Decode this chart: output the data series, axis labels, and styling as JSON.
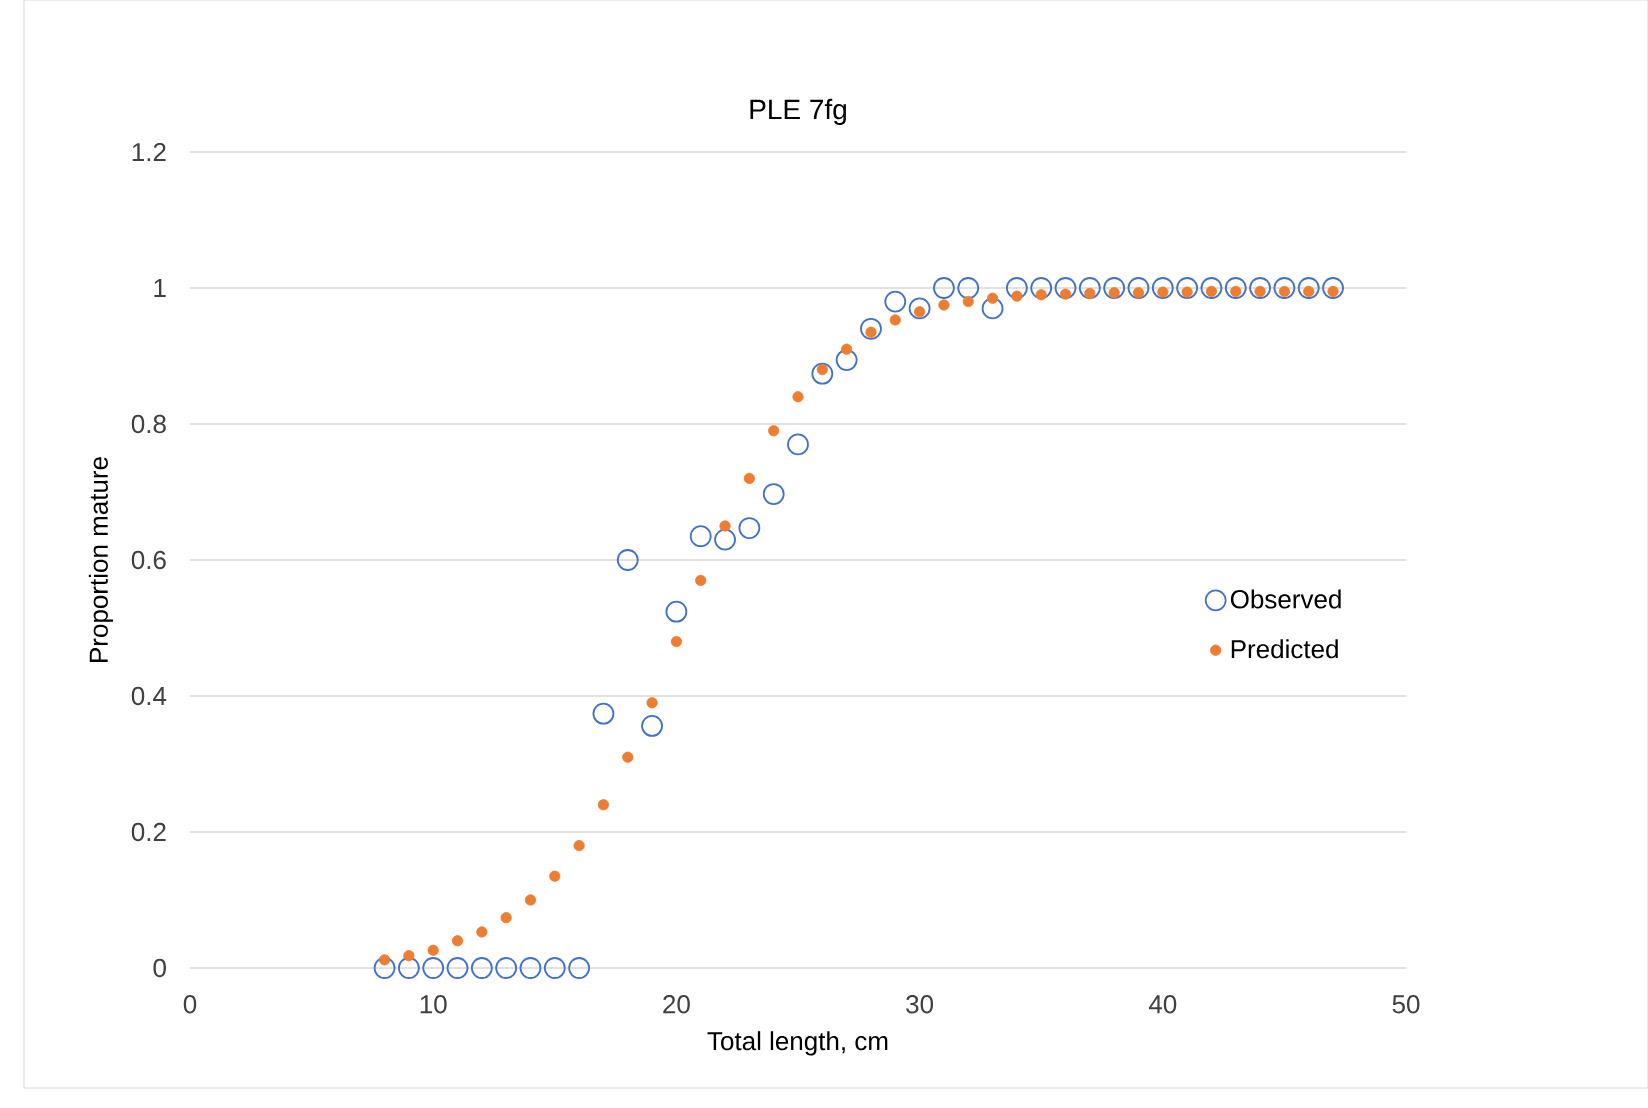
{
  "chart_data": {
    "type": "scatter",
    "title": "PLE 7fg",
    "xlabel": "Total length, cm",
    "ylabel": "Proportion mature",
    "xlim": [
      0,
      50
    ],
    "xticks": [
      0,
      10,
      20,
      30,
      40,
      50
    ],
    "ylim": [
      0,
      1.2
    ],
    "yticks": [
      0,
      0.2,
      0.4,
      0.6,
      0.8,
      1,
      1.2
    ],
    "grid": "y",
    "legend": "right",
    "x": [
      8,
      9,
      10,
      11,
      12,
      13,
      14,
      15,
      16,
      17,
      18,
      19,
      20,
      21,
      22,
      23,
      24,
      25,
      26,
      27,
      28,
      29,
      30,
      31,
      32,
      33,
      34,
      35,
      36,
      37,
      38,
      39,
      40,
      41,
      42,
      43,
      44,
      45,
      46,
      47
    ],
    "series": [
      {
        "name": "Observed",
        "color": "#4472c4",
        "marker": "circle",
        "values": [
          0,
          0,
          0,
          0,
          0,
          0,
          0,
          0,
          0,
          0.374,
          0.6,
          0.356,
          0.524,
          0.635,
          0.63,
          0.647,
          0.697,
          0.77,
          0.874,
          0.894,
          0.94,
          0.98,
          0.97,
          1,
          1,
          0.97,
          1,
          1,
          1,
          1,
          1,
          1,
          1,
          1,
          1,
          1,
          1,
          1,
          1,
          1
        ]
      },
      {
        "name": "Predicted",
        "color": "#ed7d31",
        "marker": "dot",
        "values": [
          0.012,
          0.018,
          0.026,
          0.04,
          0.053,
          0.074,
          0.1,
          0.135,
          0.18,
          0.24,
          0.31,
          0.39,
          0.48,
          0.57,
          0.65,
          0.72,
          0.79,
          0.84,
          0.88,
          0.91,
          0.935,
          0.953,
          0.965,
          0.975,
          0.98,
          0.985,
          0.988,
          0.99,
          0.991,
          0.992,
          0.993,
          0.993,
          0.994,
          0.994,
          0.995,
          0.995,
          0.995,
          0.995,
          0.995,
          0.995
        ]
      }
    ]
  }
}
